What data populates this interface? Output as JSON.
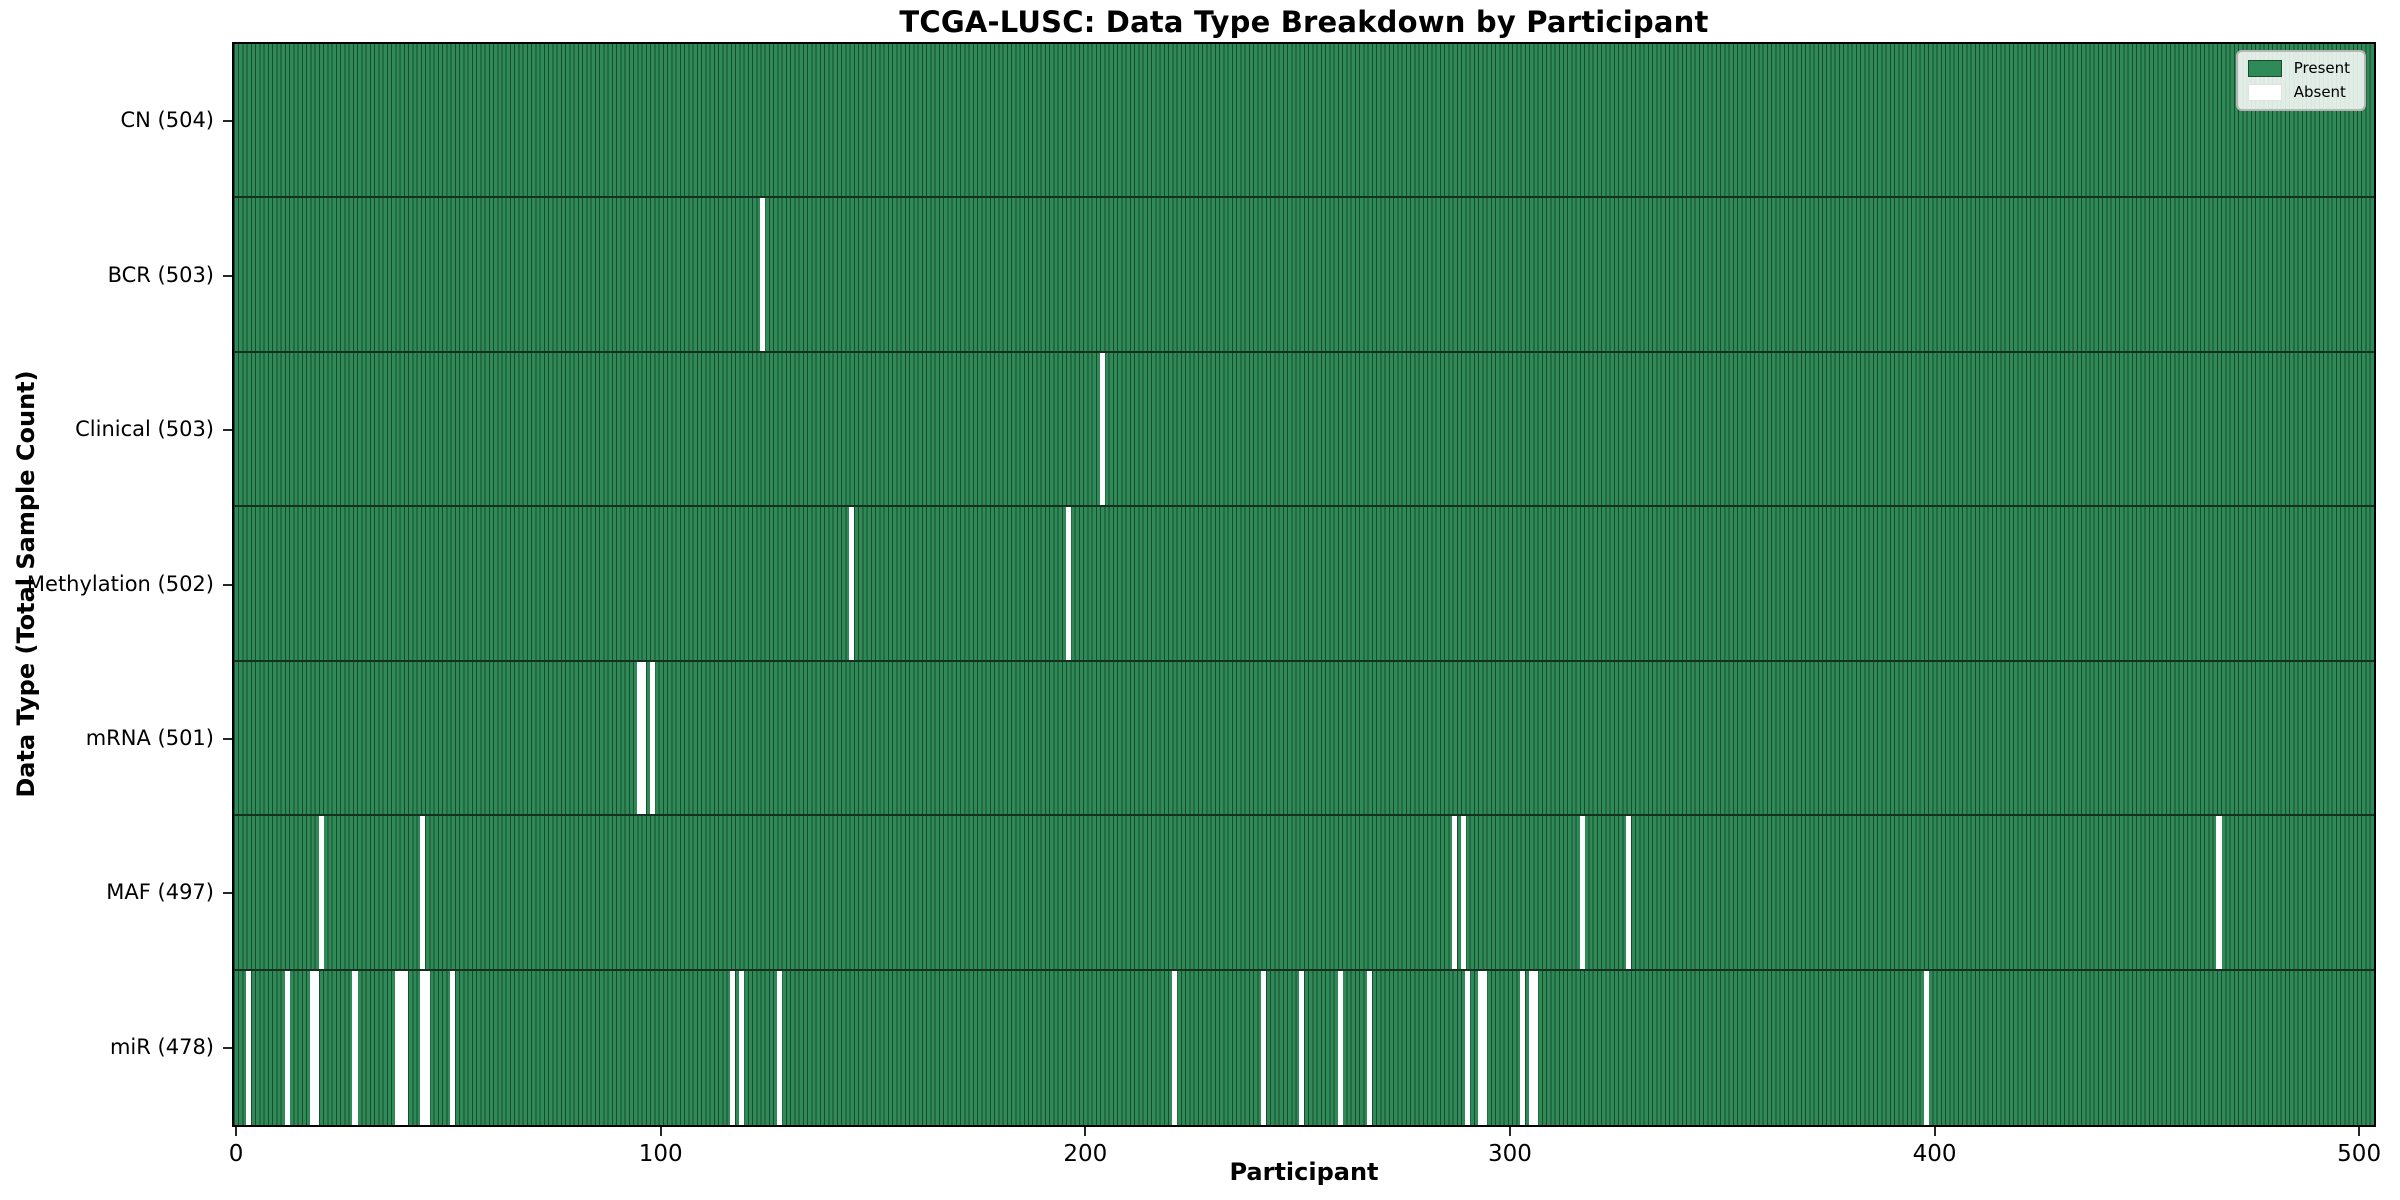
{
  "chart_data": {
    "type": "heatmap",
    "title": "TCGA-LUSC: Data Type Breakdown by Participant",
    "xlabel": "Participant",
    "ylabel": "Data Type (Total Sample Count)",
    "x_ticks": [
      0,
      100,
      200,
      300,
      400,
      500
    ],
    "x_range": [
      0,
      503
    ],
    "n_participants": 504,
    "grid": false,
    "legend_position": "upper right",
    "legend": {
      "present_label": "Present",
      "absent_label": "Absent"
    },
    "colors": {
      "present": "#2e8b57",
      "present_edge": "#1b4a2e",
      "absent": "#ffffff",
      "row_divider": "#16301f",
      "plot_border": "#000000"
    },
    "rows": [
      {
        "data_type": "CN",
        "label": "CN (504)",
        "total": 504,
        "absent_participants": []
      },
      {
        "data_type": "BCR",
        "label": "BCR (503)",
        "total": 503,
        "absent_participants": [
          124
        ]
      },
      {
        "data_type": "Clinical",
        "label": "Clinical (503)",
        "total": 503,
        "absent_participants": [
          204
        ]
      },
      {
        "data_type": "Methylation",
        "label": "Methylation (502)",
        "total": 502,
        "absent_participants": [
          145,
          196
        ]
      },
      {
        "data_type": "mRNA",
        "label": "mRNA (501)",
        "total": 501,
        "absent_participants": [
          95,
          96,
          98
        ]
      },
      {
        "data_type": "MAF",
        "label": "MAF (497)",
        "total": 497,
        "absent_participants": [
          20,
          44,
          287,
          289,
          317,
          328,
          467
        ]
      },
      {
        "data_type": "miR",
        "label": "miR (478)",
        "total": 478,
        "absent_participants": [
          3,
          12,
          18,
          19,
          28,
          38,
          39,
          40,
          44,
          45,
          51,
          117,
          119,
          128,
          221,
          242,
          251,
          260,
          267,
          290,
          293,
          294,
          303,
          305,
          306,
          398
        ]
      }
    ]
  }
}
